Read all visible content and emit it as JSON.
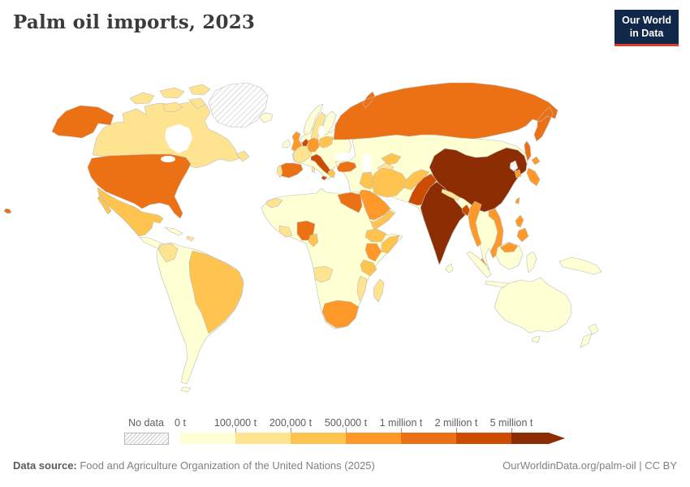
{
  "header": {
    "title": "Palm oil imports, 2023"
  },
  "logo": {
    "line1": "Our World",
    "line2": "in Data"
  },
  "chart_data": {
    "type": "choropleth",
    "title": "Palm oil imports, 2023",
    "unit": "t",
    "legend": {
      "no_data_label": "No data",
      "stops": [
        "0 t",
        "100,000 t",
        "200,000 t",
        "500,000 t",
        "1 million t",
        "2 million t",
        "5 million t"
      ],
      "colors": [
        "#ffffd4",
        "#fee391",
        "#fec44f",
        "#fe9929",
        "#ec7014",
        "#cc4c02",
        "#8c2d04"
      ],
      "no_data_countries": [
        "Greenland",
        "North Korea"
      ]
    },
    "countries": {
      "greenland": "no_data",
      "north-korea": "no_data",
      "canada": 1,
      "alaska": 4,
      "usa": 4,
      "hawaii": 4,
      "mexico": 2,
      "central-america": 0,
      "cuba": 0,
      "hispaniola": 1,
      "south-america": 0,
      "colombia": 1,
      "brazil": 2,
      "iceland": 0,
      "europe": 0,
      "norway": 0,
      "sweden": 1,
      "finland": 0,
      "united-kingdom": 3,
      "ireland": 0,
      "france": 1,
      "spain": 4,
      "portugal": 1,
      "germany": 3,
      "netherlands": 5,
      "poland": 2,
      "italy": 5,
      "sardinia": 1,
      "greece": 2,
      "turkey": 4,
      "russia": 4,
      "asia": 0,
      "uzbekistan": 2,
      "turkmenistan": 1,
      "iran": 2,
      "iraq": 2,
      "afghanistan": 2,
      "saudi-arabia": 3,
      "yemen-oman": 2,
      "pakistan": 5,
      "india": 6,
      "nepal": 1,
      "bangladesh": 5,
      "china": 6,
      "myanmar": 3,
      "vietnam": 3,
      "malaysia": 3,
      "indonesia": 0,
      "philippines": 3,
      "japan": 3,
      "south-korea": 3,
      "taiwan": 3,
      "sri-lanka": 0,
      "africa": 0,
      "morocco": 1,
      "egypt": 4,
      "nigeria": 4,
      "ghana": 1,
      "cameroon": 2,
      "ethiopia": 2,
      "somalia": 2,
      "kenya": 3,
      "tanzania": 2,
      "angola": 1,
      "mozambique": 1,
      "south-africa": 3,
      "madagascar": 1,
      "australia": 0,
      "new-zealand": 0,
      "new-guinea": 0
    }
  },
  "footer": {
    "source_label": "Data source:",
    "source_text": " Food and Agriculture Organization of the United Nations (2025)",
    "credit": "OurWorldinData.org/palm-oil | CC BY"
  }
}
